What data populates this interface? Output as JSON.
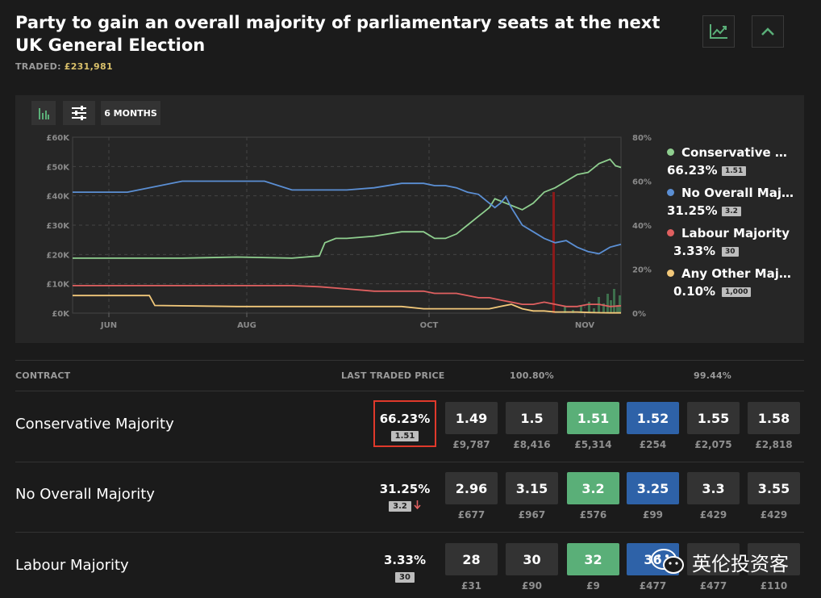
{
  "header": {
    "title": "Party to gain an overall majority of parliamentary seats at the next UK General Election",
    "traded_label": "TRADED:",
    "traded_amount": "£231,981"
  },
  "icons": {
    "chart_toggle": "line-chart-icon",
    "collapse": "chevron-up-icon",
    "bar_chart": "bar-chart-icon",
    "settings": "sliders-icon"
  },
  "chart_controls": {
    "range_label": "6 MONTHS"
  },
  "chart_data": {
    "type": "line",
    "x_ticks": [
      "JUN",
      "AUG",
      "OCT",
      "NOV"
    ],
    "y_left_ticks": [
      "£60K",
      "£50K",
      "£40K",
      "£30K",
      "£20K",
      "£10K",
      "£0K"
    ],
    "y_right_ticks": [
      "80%",
      "60%",
      "40%",
      "20%",
      "0%"
    ],
    "y_right_range": [
      0,
      80
    ],
    "grid": true,
    "series": [
      {
        "name": "Conservative Majority",
        "color": "#8fcf8f",
        "x": [
          0,
          10,
          20,
          30,
          40,
          45,
          46,
          48,
          50,
          55,
          60,
          64,
          66,
          68,
          70,
          72,
          74,
          75,
          76,
          77,
          78,
          79,
          80,
          82,
          84,
          86,
          88,
          90,
          92,
          94,
          95,
          96,
          97,
          98,
          99,
          100
        ],
        "values": [
          25,
          25,
          25,
          25.5,
          25,
          26,
          32,
          34,
          34,
          35,
          37,
          37,
          34,
          34,
          36,
          40,
          44,
          46,
          48,
          52,
          51,
          50,
          49,
          47,
          50,
          55,
          57,
          60,
          63,
          64,
          66,
          68,
          69,
          70,
          67,
          66.23
        ]
      },
      {
        "name": "No Overall Majority",
        "color": "#5b8fd4",
        "x": [
          0,
          10,
          20,
          30,
          35,
          40,
          50,
          55,
          60,
          64,
          66,
          68,
          70,
          72,
          74,
          75,
          76,
          77,
          78,
          79,
          80,
          82,
          84,
          86,
          88,
          90,
          92,
          94,
          96,
          98,
          100
        ],
        "values": [
          55,
          55,
          60,
          60,
          60,
          56,
          56,
          57,
          59,
          59,
          58,
          58,
          57,
          55,
          54,
          52,
          50,
          48,
          50,
          53,
          48,
          40,
          37,
          34,
          32,
          33,
          30,
          28,
          27,
          30,
          31.25
        ]
      },
      {
        "name": "Labour Majority",
        "color": "#e06060",
        "x": [
          0,
          20,
          30,
          40,
          45,
          50,
          55,
          60,
          64,
          66,
          70,
          74,
          76,
          78,
          80,
          82,
          84,
          86,
          88,
          90,
          92,
          94,
          96,
          98,
          100
        ],
        "values": [
          12.5,
          12.5,
          12.5,
          12.5,
          12,
          11,
          10,
          10,
          10,
          9,
          9,
          7,
          7,
          6,
          5,
          4,
          4,
          5,
          4,
          3,
          3,
          4,
          4,
          3,
          3.33
        ]
      },
      {
        "name": "Any Other Majority",
        "color": "#f2c87a",
        "x": [
          0,
          10,
          14,
          15,
          30,
          60,
          64,
          66,
          68,
          70,
          72,
          74,
          76,
          78,
          80,
          82,
          84,
          86,
          88,
          90,
          92,
          94,
          96,
          98,
          100
        ],
        "values": [
          8,
          8,
          8,
          3.5,
          3,
          3,
          2,
          2,
          2,
          2,
          2,
          2,
          2,
          3,
          4,
          2,
          1,
          1,
          0.5,
          0.5,
          0.5,
          0.3,
          0.2,
          0.1,
          0.1
        ]
      }
    ]
  },
  "legend": [
    {
      "name": "Conservative Majority",
      "display": "Conservative Majority",
      "pct": "66.23%",
      "badge": "1.51",
      "color": "#8fcf8f"
    },
    {
      "name": "No Overall Majority",
      "display": "No Overall Majority",
      "pct": "31.25%",
      "badge": "3.2",
      "color": "#5b8fd4"
    },
    {
      "name": "Labour Majority",
      "display": "Labour Majority",
      "pct": "3.33%",
      "badge": "30",
      "color": "#e06060"
    },
    {
      "name": "Any Other Majority",
      "display": "Any Other Majority",
      "pct": "0.10%",
      "badge": "1,000",
      "color": "#f2c87a"
    }
  ],
  "table": {
    "headers": {
      "contract": "CONTRACT",
      "ltp": "LAST TRADED PRICE",
      "back_pct": "100.80%",
      "lay_pct": "99.44%"
    },
    "rows": [
      {
        "name": "Conservative Majority",
        "ltp_pct": "66.23%",
        "ltp_price": "1.51",
        "ltp_trend": "",
        "cells": [
          {
            "price": "1.49",
            "vol": "£9,787",
            "kind": "plain"
          },
          {
            "price": "1.5",
            "vol": "£8,416",
            "kind": "plain"
          },
          {
            "price": "1.51",
            "vol": "£5,314",
            "kind": "back"
          },
          {
            "price": "1.52",
            "vol": "£254",
            "kind": "lay"
          },
          {
            "price": "1.55",
            "vol": "£2,075",
            "kind": "plain"
          },
          {
            "price": "1.58",
            "vol": "£2,818",
            "kind": "plain"
          }
        ]
      },
      {
        "name": "No Overall Majority",
        "ltp_pct": "31.25%",
        "ltp_price": "3.2",
        "ltp_trend": "down",
        "cells": [
          {
            "price": "2.96",
            "vol": "£677",
            "kind": "plain"
          },
          {
            "price": "3.15",
            "vol": "£967",
            "kind": "plain"
          },
          {
            "price": "3.2",
            "vol": "£576",
            "kind": "back"
          },
          {
            "price": "3.25",
            "vol": "£99",
            "kind": "lay"
          },
          {
            "price": "3.3",
            "vol": "£429",
            "kind": "plain"
          },
          {
            "price": "3.55",
            "vol": "£429",
            "kind": "plain"
          }
        ]
      },
      {
        "name": "Labour Majority",
        "ltp_pct": "3.33%",
        "ltp_price": "30",
        "ltp_trend": "",
        "cells": [
          {
            "price": "28",
            "vol": "£31",
            "kind": "plain"
          },
          {
            "price": "30",
            "vol": "£90",
            "kind": "plain"
          },
          {
            "price": "32",
            "vol": "£9",
            "kind": "back"
          },
          {
            "price": "36",
            "vol": "£477",
            "kind": "lay"
          },
          {
            "price": "",
            "vol": "£477",
            "kind": "plain"
          },
          {
            "price": "",
            "vol": "£110",
            "kind": "plain"
          }
        ]
      }
    ]
  },
  "watermark": {
    "text": "英伦投资客",
    "icon": "wechat-icon"
  }
}
